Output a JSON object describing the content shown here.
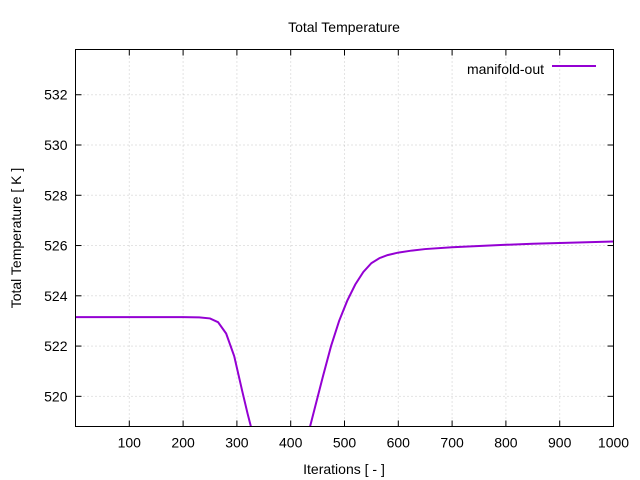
{
  "chart_data": {
    "type": "line",
    "title": "Total Temperature",
    "xlabel": "Iterations [ - ]",
    "ylabel": "Total Temperature [ K ]",
    "xlim": [
      0,
      1000
    ],
    "ylim": [
      518.8,
      533.8
    ],
    "xticks": [
      100,
      200,
      300,
      400,
      500,
      600,
      700,
      800,
      900,
      1000
    ],
    "yticks": [
      520,
      522,
      524,
      526,
      528,
      530,
      532
    ],
    "grid": true,
    "legend_position": "top-right",
    "series": [
      {
        "name": "manifold-out",
        "color": "#9400d3",
        "x": [
          0,
          50,
          100,
          150,
          200,
          230,
          250,
          265,
          280,
          295,
          310,
          320,
          326,
          436,
          445,
          460,
          475,
          490,
          505,
          520,
          535,
          550,
          565,
          580,
          600,
          625,
          650,
          700,
          750,
          800,
          850,
          900,
          950,
          1000
        ],
        "y": [
          523.15,
          523.15,
          523.15,
          523.15,
          523.15,
          523.14,
          523.1,
          522.95,
          522.5,
          521.6,
          520.2,
          519.3,
          518.8,
          518.8,
          519.55,
          520.8,
          522.0,
          523.0,
          523.8,
          524.45,
          524.95,
          525.3,
          525.5,
          525.62,
          525.72,
          525.8,
          525.86,
          525.93,
          525.98,
          526.03,
          526.07,
          526.1,
          526.13,
          526.16
        ]
      }
    ]
  }
}
